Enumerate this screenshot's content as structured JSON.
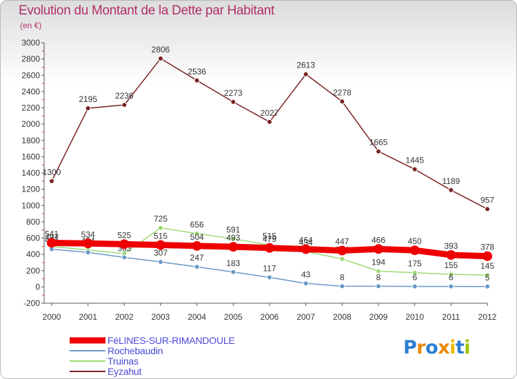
{
  "chart_data": {
    "type": "line",
    "title": "Evolution du Montant de la Dette par Habitant",
    "subtitle": "(en €)",
    "xlabel": "",
    "ylabel": "",
    "categories": [
      "2000",
      "2001",
      "2002",
      "2003",
      "2004",
      "2005",
      "2006",
      "2007",
      "2008",
      "2009",
      "2010",
      "2011",
      "2012"
    ],
    "ylim": [
      -200,
      3000
    ],
    "yticks": [
      "-200",
      "0",
      "200",
      "400",
      "600",
      "800",
      "1000",
      "1200",
      "1400",
      "1600",
      "1800",
      "2000",
      "2200",
      "2400",
      "2600",
      "2800",
      "3000"
    ],
    "grid": false,
    "series": [
      {
        "name": "FéLINES-SUR-RIMANDOULE",
        "color": "#ee0000",
        "values": [
          541,
          534,
          525,
          515,
          504,
          493,
          479,
          464,
          447,
          466,
          450,
          393,
          378
        ],
        "labels": [
          "541",
          "534",
          "525",
          "515",
          "504",
          "493",
          "479",
          "464",
          "447",
          "466",
          "450",
          "393",
          "378"
        ]
      },
      {
        "name": "Rochebaudin",
        "color": "#6a98c8",
        "values": [
          463,
          424,
          363,
          307,
          247,
          183,
          117,
          43,
          8,
          8,
          6,
          6,
          5
        ],
        "labels": [
          "463",
          "424",
          "363",
          "307",
          "247",
          "183",
          "117",
          "43",
          "8",
          "8",
          "6",
          "6",
          "5"
        ]
      },
      {
        "name": "Truinas",
        "color": "#9cd871",
        "values": [
          497,
          454,
          409,
          725,
          656,
          591,
          515,
          434,
          344,
          194,
          175,
          155,
          145
        ],
        "labels": [
          "497",
          "454",
          "409",
          "725",
          "656",
          "591",
          "515",
          "434",
          "344",
          "194",
          "175",
          "155",
          "145"
        ]
      },
      {
        "name": "Eyzahut",
        "color": "#7a2222",
        "values": [
          1300,
          2195,
          2236,
          2806,
          2536,
          2273,
          2027,
          2613,
          2278,
          1665,
          1445,
          1189,
          957
        ],
        "labels": [
          "1300",
          "2195",
          "2236",
          "2806",
          "2536",
          "2273",
          "2027",
          "2613",
          "2278",
          "1665",
          "1445",
          "1189",
          "957"
        ]
      }
    ]
  },
  "branding": {
    "text": "Proxiti",
    "letters": [
      "P",
      "r",
      "o",
      "x",
      "i",
      "t",
      "i"
    ],
    "colors": [
      "#2b7fd3",
      "#e8890c",
      "#2b7fd3",
      "#e8890c",
      "#f0b800",
      "#2b7fd3",
      "#9cc400"
    ]
  }
}
